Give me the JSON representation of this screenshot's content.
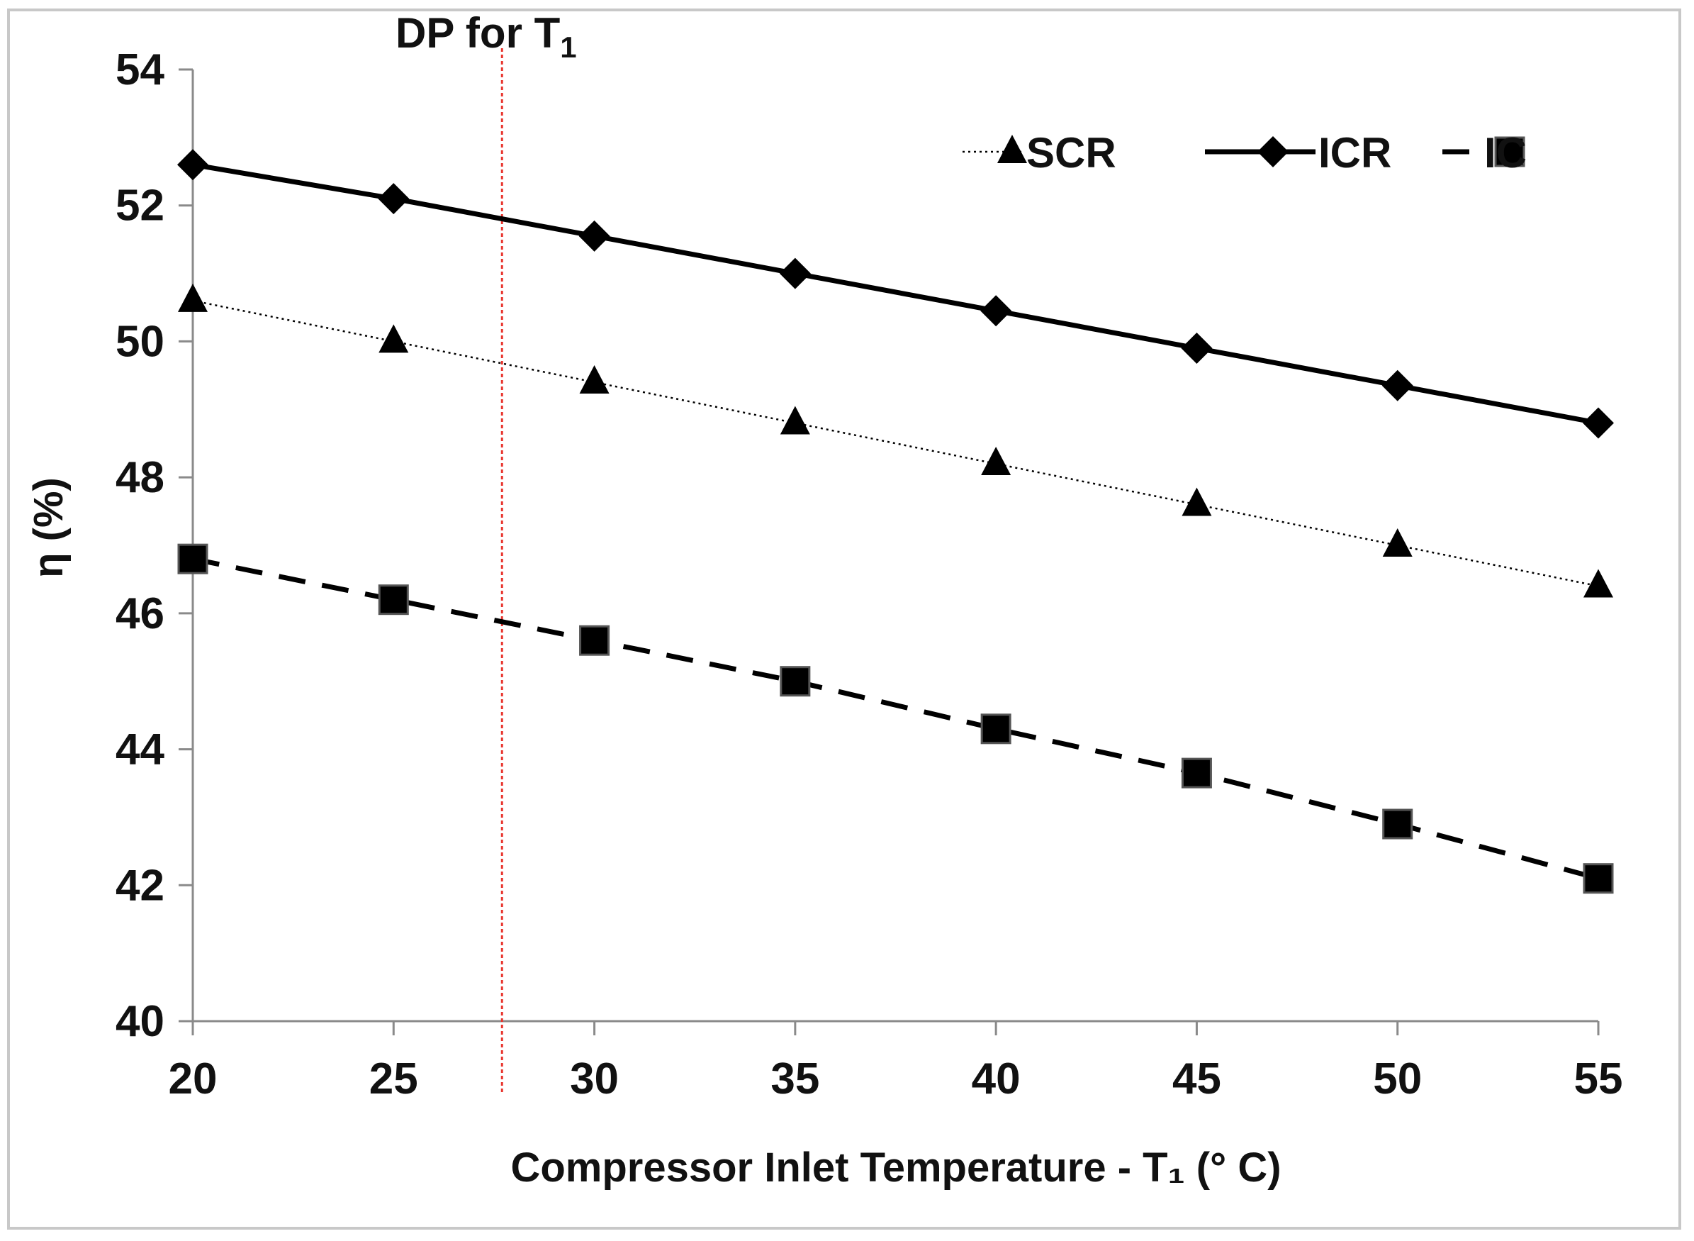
{
  "chart_data": {
    "type": "line",
    "xlabel": "Compressor Inlet Temperature - T₁ (° C)",
    "ylabel": "η (%)",
    "x": [
      20,
      25,
      30,
      35,
      40,
      45,
      50,
      55
    ],
    "xlim": [
      20,
      55
    ],
    "ylim": [
      40,
      54
    ],
    "x_ticks": [
      20,
      25,
      30,
      35,
      40,
      45,
      50,
      55
    ],
    "y_ticks": [
      40,
      42,
      44,
      46,
      48,
      50,
      52,
      54
    ],
    "grid": false,
    "legend_position": "top-right",
    "series": [
      {
        "name": "SCR",
        "values": [
          50.6,
          50.0,
          49.4,
          48.8,
          48.2,
          47.6,
          47.0,
          46.4
        ],
        "marker": "triangle",
        "line_style": "dotted",
        "color": "#000000"
      },
      {
        "name": "ICR",
        "values": [
          52.6,
          52.1,
          51.55,
          51.0,
          50.45,
          49.9,
          49.35,
          48.8
        ],
        "marker": "diamond",
        "line_style": "solid",
        "color": "#000000"
      },
      {
        "name": "IC",
        "values": [
          46.8,
          46.2,
          45.6,
          45.0,
          44.3,
          43.65,
          42.9,
          42.1
        ],
        "marker": "square",
        "line_style": "dashed",
        "color": "#000000"
      }
    ],
    "annotations": [
      {
        "text_main": "DP for T",
        "text_sub": "1",
        "x": 27.7,
        "line_color": "#e8352e",
        "line_style": "dotted-vertical"
      }
    ]
  }
}
